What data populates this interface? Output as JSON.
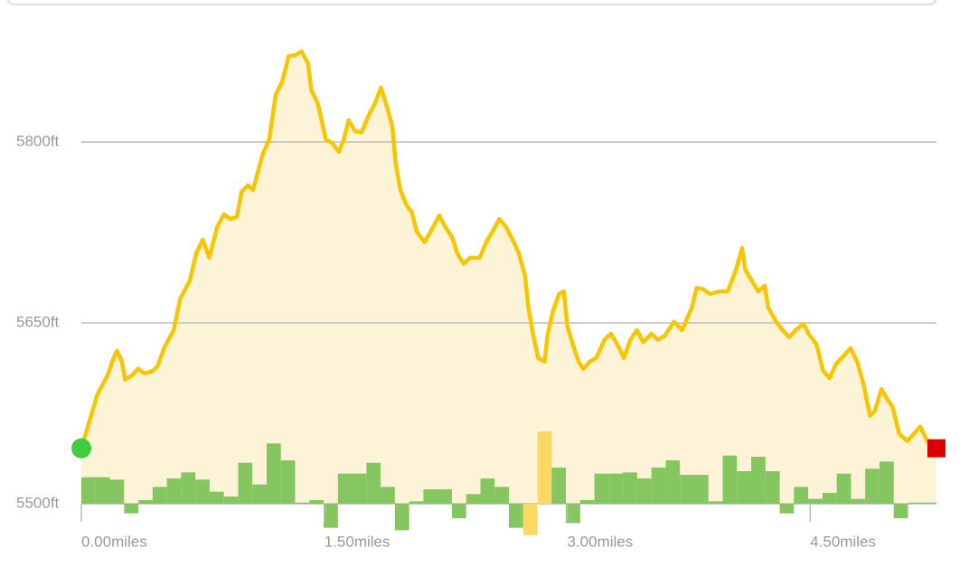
{
  "chart_data": {
    "type": "area",
    "x": [
      0,
      0.06,
      0.1,
      0.16,
      0.2,
      0.22,
      0.25,
      0.27,
      0.31,
      0.35,
      0.39,
      0.44,
      0.47,
      0.51,
      0.57,
      0.61,
      0.67,
      0.71,
      0.75,
      0.79,
      0.84,
      0.88,
      0.92,
      0.96,
      0.99,
      1.03,
      1.06,
      1.12,
      1.16,
      1.2,
      1.24,
      1.28,
      1.32,
      1.36,
      1.4,
      1.42,
      1.46,
      1.51,
      1.55,
      1.59,
      1.62,
      1.65,
      1.69,
      1.73,
      1.78,
      1.81,
      1.85,
      1.89,
      1.92,
      1.94,
      1.97,
      2.01,
      2.04,
      2.07,
      2.09,
      2.12,
      2.17,
      2.21,
      2.25,
      2.29,
      2.32,
      2.36,
      2.4,
      2.46,
      2.5,
      2.54,
      2.58,
      2.62,
      2.67,
      2.7,
      2.74,
      2.76,
      2.79,
      2.82,
      2.86,
      2.88,
      2.91,
      2.95,
      2.98,
      3.0,
      3.03,
      3.07,
      3.1,
      3.14,
      3.18,
      3.23,
      3.27,
      3.31,
      3.35,
      3.39,
      3.43,
      3.47,
      3.52,
      3.56,
      3.6,
      3.66,
      3.71,
      3.77,
      3.8,
      3.84,
      3.88,
      3.94,
      3.99,
      4.04,
      4.08,
      4.1,
      4.14,
      4.18,
      4.22,
      4.24,
      4.29,
      4.33,
      4.37,
      4.41,
      4.46,
      4.49,
      4.54,
      4.58,
      4.62,
      4.66,
      4.71,
      4.75,
      4.79,
      4.83,
      4.87,
      4.9,
      4.94,
      4.97,
      5.01,
      5.05,
      5.1,
      5.14,
      5.18,
      5.23,
      5.28
    ],
    "series": [
      {
        "color": "#f7c600",
        "fill": "#fdf4d8",
        "values": [
          5546,
          5573,
          5591,
          5606,
          5621,
          5627,
          5618,
          5603,
          5606,
          5612,
          5608,
          5610,
          5614,
          5629,
          5644,
          5670,
          5685,
          5708,
          5719,
          5704,
          5730,
          5740,
          5736,
          5738,
          5759,
          5764,
          5760,
          5790,
          5802,
          5839,
          5850,
          5871,
          5872,
          5875,
          5865,
          5843,
          5832,
          5802,
          5799,
          5792,
          5802,
          5818,
          5809,
          5808,
          5824,
          5831,
          5845,
          5828,
          5813,
          5783,
          5760,
          5747,
          5742,
          5726,
          5722,
          5717,
          5729,
          5739,
          5729,
          5721,
          5708,
          5699,
          5704,
          5704,
          5717,
          5726,
          5736,
          5730,
          5717,
          5708,
          5689,
          5663,
          5640,
          5621,
          5618,
          5641,
          5659,
          5674,
          5676,
          5648,
          5634,
          5618,
          5612,
          5618,
          5621,
          5636,
          5641,
          5632,
          5621,
          5636,
          5644,
          5634,
          5641,
          5636,
          5639,
          5651,
          5644,
          5663,
          5679,
          5678,
          5674,
          5676,
          5676,
          5693,
          5712,
          5694,
          5685,
          5676,
          5681,
          5663,
          5651,
          5644,
          5638,
          5644,
          5649,
          5641,
          5632,
          5610,
          5604,
          5616,
          5623,
          5629,
          5618,
          5599,
          5573,
          5577,
          5595,
          5588,
          5580,
          5558,
          5552,
          5558,
          5564,
          5550,
          5546
        ]
      }
    ],
    "bar_series": {
      "color": "#85c75e",
      "highlight_color": "#fbd860",
      "highlighted": [
        31,
        32
      ],
      "values": [
        5522,
        5522,
        5520,
        5492,
        5503,
        5514,
        5521,
        5526,
        5520,
        5510,
        5506,
        5534,
        5516,
        5550,
        5536,
        5501,
        5503,
        5480,
        5525,
        5525,
        5534,
        5514,
        5478,
        5502,
        5512,
        5512,
        5488,
        5508,
        5521,
        5514,
        5480,
        5474,
        5560,
        5530,
        5484,
        5503,
        5525,
        5525,
        5526,
        5521,
        5530,
        5536,
        5524,
        5524,
        5502,
        5540,
        5527,
        5539,
        5527,
        5492,
        5514,
        5504,
        5509,
        5525,
        5504,
        5529,
        5535,
        5488,
        5501,
        5501
      ]
    },
    "start_color": "#3fcc3f",
    "end_color": "#d90000",
    "xlim": [
      0,
      5.28
    ],
    "xticks": [
      {
        "value": 0,
        "label": "0.00miles"
      },
      {
        "value": 1.5,
        "label": "1.50miles"
      },
      {
        "value": 3,
        "label": "3.00miles"
      },
      {
        "value": 4.5,
        "label": "4.50miles"
      }
    ],
    "ylim": [
      5500,
      5900
    ],
    "yticks": [
      {
        "value": 5500,
        "label": "5500ft"
      },
      {
        "value": 5650,
        "label": "5650ft"
      },
      {
        "value": 5800,
        "label": "5800ft"
      }
    ],
    "grid": true
  }
}
